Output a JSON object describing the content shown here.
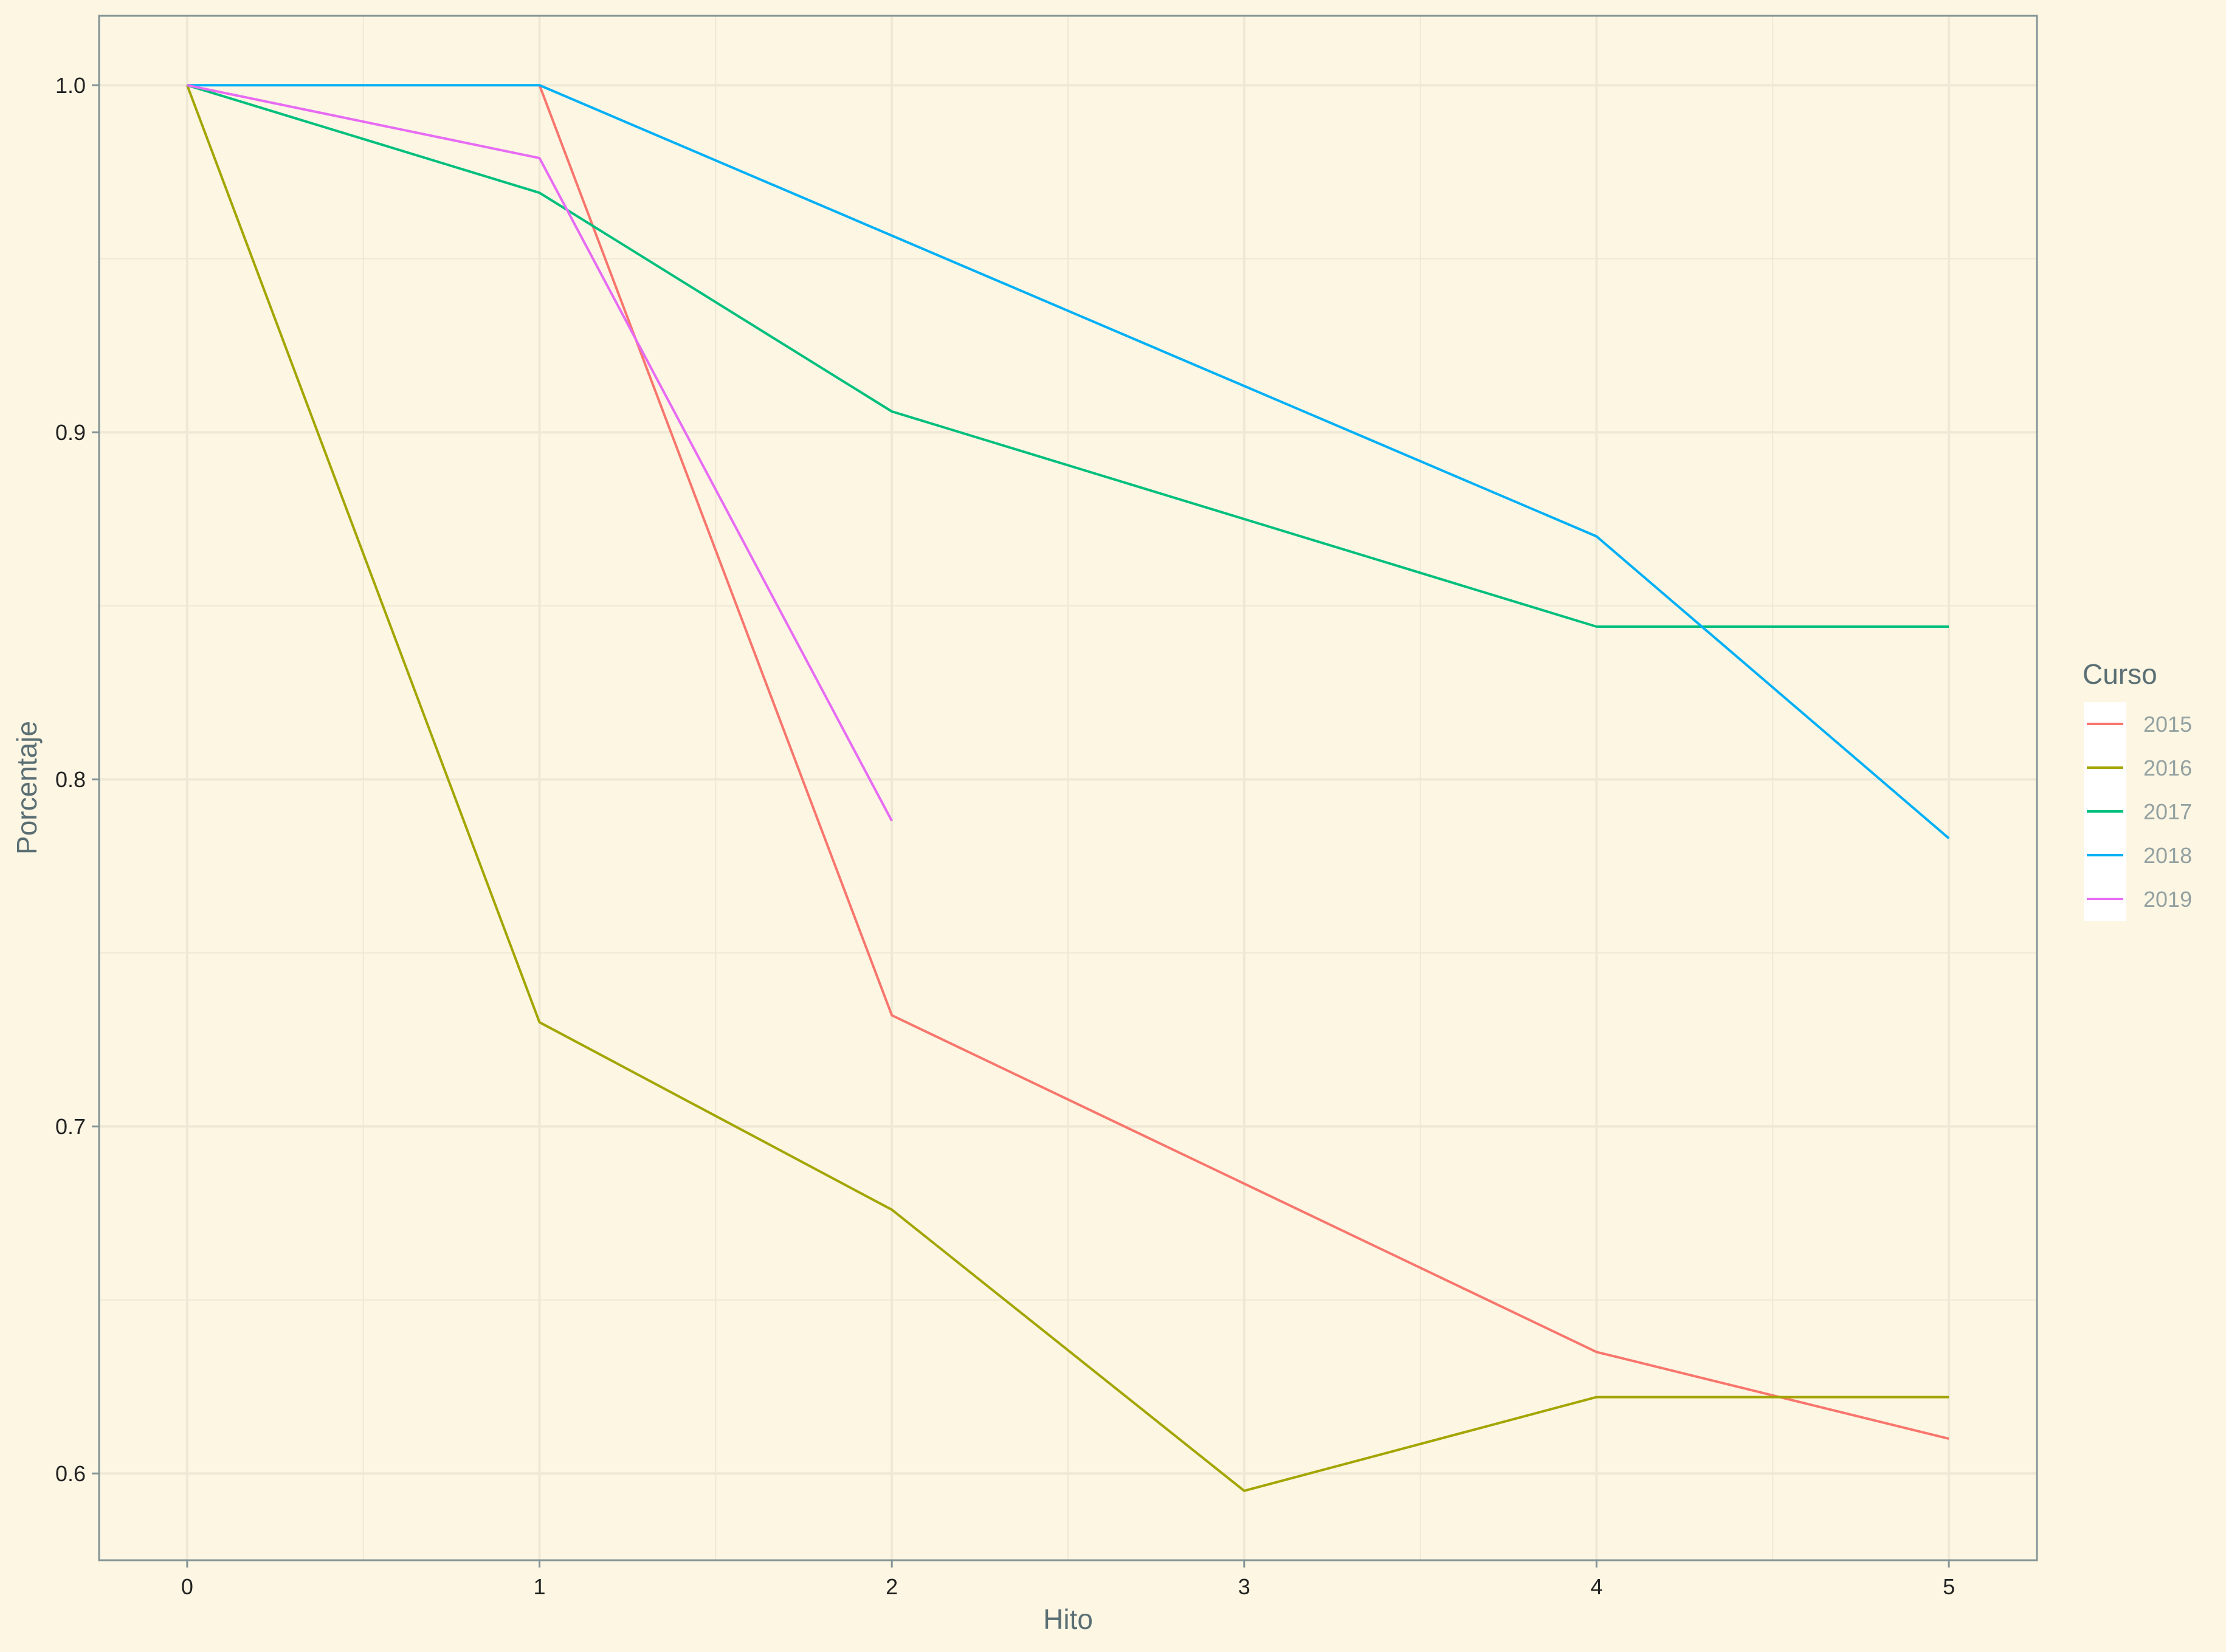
{
  "chart_data": {
    "type": "line",
    "title": "",
    "xlabel": "Hito",
    "ylabel": "Porcentaje",
    "xlim": [
      -0.25,
      5.25
    ],
    "ylim": [
      0.575,
      1.02
    ],
    "x_ticks": [
      0,
      1,
      2,
      3,
      4,
      5
    ],
    "y_ticks": [
      0.6,
      0.7,
      0.8,
      0.9,
      1.0
    ],
    "y_tick_labels": [
      "0.6",
      "0.7",
      "0.8",
      "0.9",
      "1.0"
    ],
    "grid": true,
    "legend": {
      "title": "Curso",
      "placement": "right"
    },
    "series": [
      {
        "name": "2015",
        "color": "#f8766d",
        "points": [
          [
            1,
            1.0
          ],
          [
            2,
            0.732
          ],
          [
            4,
            0.635
          ],
          [
            5,
            0.61
          ]
        ]
      },
      {
        "name": "2016",
        "color": "#a3a500",
        "points": [
          [
            0,
            1.0
          ],
          [
            1,
            0.73
          ],
          [
            2,
            0.676
          ],
          [
            3,
            0.595
          ],
          [
            4,
            0.622
          ],
          [
            5,
            0.622
          ]
        ]
      },
      {
        "name": "2017",
        "color": "#00bf7d",
        "points": [
          [
            0,
            1.0
          ],
          [
            1,
            0.969
          ],
          [
            2,
            0.906
          ],
          [
            4,
            0.844
          ],
          [
            5,
            0.844
          ]
        ]
      },
      {
        "name": "2018",
        "color": "#00b0f6",
        "points": [
          [
            0,
            1.0
          ],
          [
            1,
            1.0
          ],
          [
            4,
            0.87
          ],
          [
            5,
            0.783
          ]
        ]
      },
      {
        "name": "2019",
        "color": "#e76bf3",
        "points": [
          [
            0,
            1.0
          ],
          [
            1,
            0.979
          ],
          [
            2,
            0.788
          ]
        ]
      }
    ]
  },
  "colors": {
    "background": "#fdf6e3",
    "grid": "#eee8d5",
    "panel_border": "#839496",
    "legend_key_background": "#ffffff"
  }
}
